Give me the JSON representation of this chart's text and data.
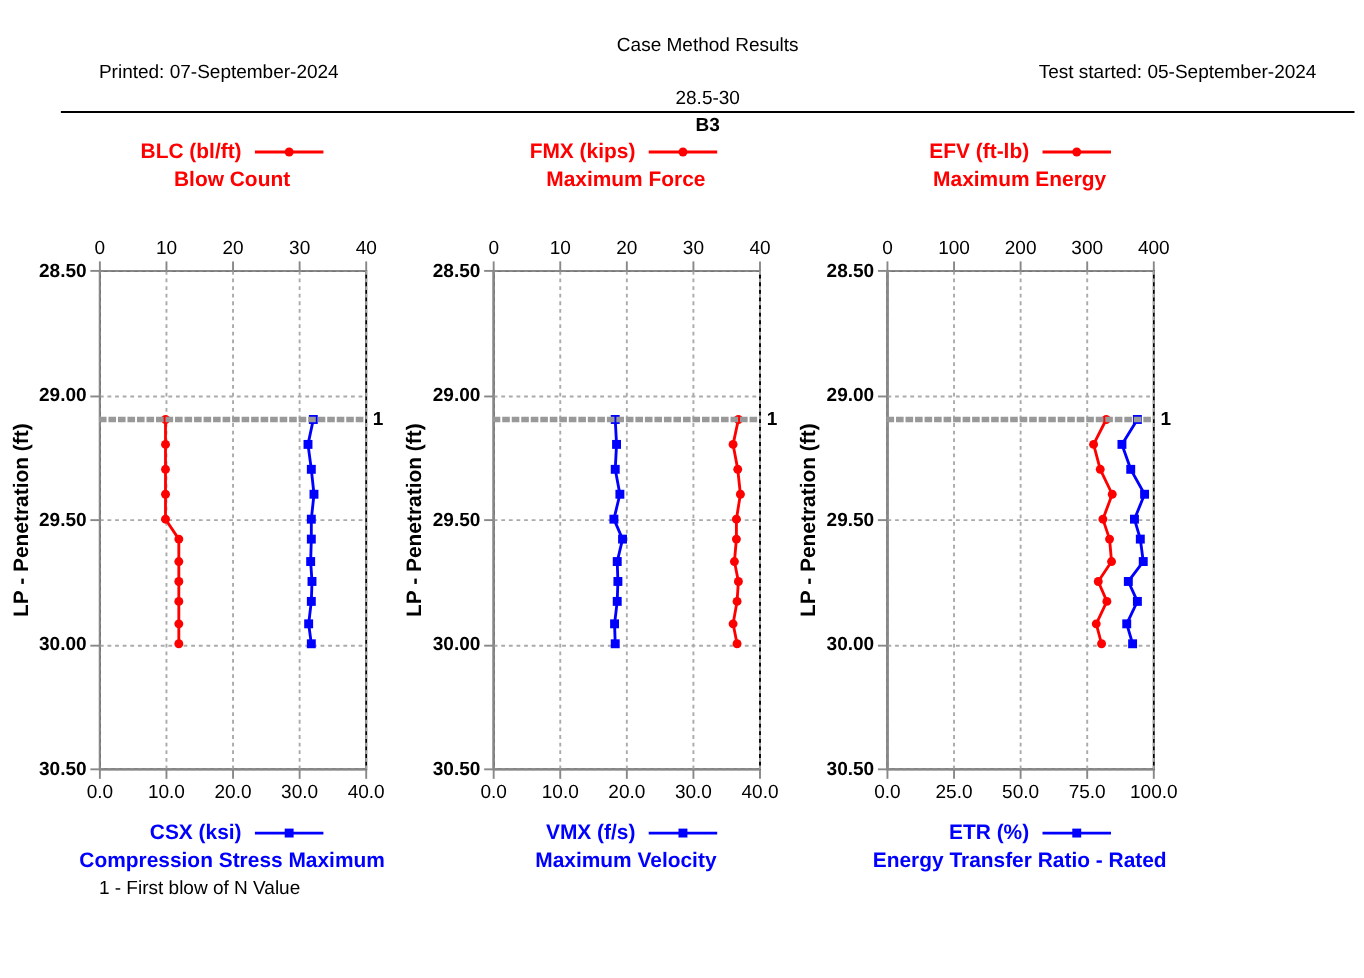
{
  "chart_data": [
    {
      "type": "line",
      "annotations": [
        "Case Method Results",
        "Printed: 07-September-2024",
        "Test started: 05-September-2024",
        "28.5-30",
        "B3",
        "1 - First blow of N Value",
        "1"
      ],
      "legend": "top",
      "ylabel": "LP - Penetration (ft)",
      "ylim": [
        30.5,
        28.5
      ],
      "yticks": [
        {
          "value": 28.5,
          "label": "28.50"
        },
        {
          "value": 29.0,
          "label": "29.00"
        },
        {
          "value": 29.5,
          "label": "29.50"
        },
        {
          "value": 30.0,
          "label": "30.00"
        },
        {
          "value": 30.5,
          "label": "30.50"
        }
      ],
      "xlim": [
        0,
        40
      ],
      "xticks": [
        {
          "value": 0,
          "label": "0.0"
        },
        {
          "value": 10,
          "label": "10.0"
        },
        {
          "value": 20,
          "label": "20.0"
        },
        {
          "value": 30,
          "label": "30.0"
        },
        {
          "value": 40,
          "label": "40.0"
        }
      ],
      "xlabel": "Compression Stress Maximum",
      "x2lim": [
        0,
        40
      ],
      "x2ticks": [
        0,
        10,
        20,
        30,
        40
      ],
      "x2label": "Blow Count",
      "grid": true,
      "ref_lines": [
        {
          "axis": "y",
          "value": 29.1,
          "color": "#999999",
          "line_style": "dashed"
        }
      ],
      "series": [
        {
          "name": "BLC (bl/ft)",
          "color": "#ff0000",
          "axis": "x2",
          "marker": "circle",
          "x": [
            10,
            10,
            10,
            10,
            10,
            12,
            12,
            12,
            12,
            12,
            12
          ],
          "values": [
            29.1,
            29.2,
            29.3,
            29.4,
            29.5,
            29.58,
            29.67,
            29.75,
            29.83,
            29.92,
            30.0
          ]
        },
        {
          "name": "CSX (ksi)",
          "color": "#0000ff",
          "marker": "square",
          "x": [
            32.2,
            31.4,
            31.9,
            32.3,
            31.9,
            31.9,
            31.8,
            32.0,
            31.9,
            31.5,
            31.9
          ],
          "values": [
            29.1,
            29.2,
            29.3,
            29.4,
            29.5,
            29.58,
            29.67,
            29.75,
            29.83,
            29.92,
            30.0
          ]
        }
      ]
    },
    {
      "type": "line",
      "annotations": [
        "1"
      ],
      "legend": "top",
      "ylabel": "LP - Penetration (ft)",
      "ylim": [
        30.5,
        28.5
      ],
      "yticks": [
        {
          "value": 28.5,
          "label": "28.50"
        },
        {
          "value": 29.0,
          "label": "29.00"
        },
        {
          "value": 29.5,
          "label": "29.50"
        },
        {
          "value": 30.0,
          "label": "30.00"
        },
        {
          "value": 30.5,
          "label": "30.50"
        }
      ],
      "xlim": [
        0,
        40
      ],
      "xticks": [
        {
          "value": 0,
          "label": "0.0"
        },
        {
          "value": 10,
          "label": "10.0"
        },
        {
          "value": 20,
          "label": "20.0"
        },
        {
          "value": 30,
          "label": "30.0"
        },
        {
          "value": 40,
          "label": "40.0"
        }
      ],
      "xlabel": "Maximum Velocity",
      "x2lim": [
        0,
        40
      ],
      "x2ticks": [
        0,
        10,
        20,
        30,
        40
      ],
      "x2label": "Maximum Force",
      "grid": true,
      "ref_lines": [
        {
          "axis": "y",
          "value": 29.1,
          "color": "#999999",
          "line_style": "dashed"
        }
      ],
      "series": [
        {
          "name": "FMX (kips)",
          "color": "#ff0000",
          "axis": "x2",
          "marker": "circle",
          "x": [
            36.9,
            36.1,
            36.8,
            37.2,
            36.6,
            36.6,
            36.3,
            36.9,
            36.7,
            36.1,
            36.7
          ],
          "values": [
            29.1,
            29.2,
            29.3,
            29.4,
            29.5,
            29.58,
            29.67,
            29.75,
            29.83,
            29.92,
            30.0
          ]
        },
        {
          "name": "VMX (f/s)",
          "color": "#0000ff",
          "marker": "square",
          "x": [
            18.4,
            18.6,
            18.4,
            19.1,
            18.2,
            19.5,
            18.7,
            18.8,
            18.7,
            18.3,
            18.4
          ],
          "values": [
            29.1,
            29.2,
            29.3,
            29.4,
            29.5,
            29.58,
            29.67,
            29.75,
            29.83,
            29.92,
            30.0
          ]
        }
      ]
    },
    {
      "type": "line",
      "annotations": [
        "1"
      ],
      "legend": "top",
      "ylabel": "LP - Penetration (ft)",
      "ylim": [
        30.5,
        28.5
      ],
      "yticks": [
        {
          "value": 28.5,
          "label": "28.50"
        },
        {
          "value": 29.0,
          "label": "29.00"
        },
        {
          "value": 29.5,
          "label": "29.50"
        },
        {
          "value": 30.0,
          "label": "30.00"
        },
        {
          "value": 30.5,
          "label": "30.50"
        }
      ],
      "xlim": [
        0,
        100
      ],
      "xticks": [
        {
          "value": 0,
          "label": "0.0"
        },
        {
          "value": 25,
          "label": "25.0"
        },
        {
          "value": 50,
          "label": "50.0"
        },
        {
          "value": 75,
          "label": "75.0"
        },
        {
          "value": 100,
          "label": "100.0"
        }
      ],
      "xlabel": "Energy Transfer Ratio - Rated",
      "x2lim": [
        0,
        400
      ],
      "x2ticks": [
        0,
        100,
        200,
        300,
        400
      ],
      "x2label": "Maximum Energy",
      "grid": true,
      "ref_lines": [
        {
          "axis": "y",
          "value": 29.1,
          "color": "#999999",
          "line_style": "dashed"
        }
      ],
      "series": [
        {
          "name": "EFV (ft-lb)",
          "color": "#ff0000",
          "axis": "x2",
          "marker": "circle",
          "x": [
            330,
            311,
            321,
            339,
            325,
            335,
            338,
            318,
            331,
            315,
            323
          ],
          "values": [
            29.1,
            29.2,
            29.3,
            29.4,
            29.5,
            29.58,
            29.67,
            29.75,
            29.83,
            29.92,
            30.0
          ]
        },
        {
          "name": "ETR (%)",
          "color": "#0000ff",
          "marker": "square",
          "x": [
            94.2,
            88.4,
            91.7,
            96.9,
            93.1,
            95.3,
            96.4,
            90.8,
            94.2,
            90.2,
            92.4
          ],
          "values": [
            29.1,
            29.2,
            29.3,
            29.4,
            29.5,
            29.58,
            29.67,
            29.75,
            29.83,
            29.92,
            30.0
          ]
        }
      ]
    }
  ]
}
